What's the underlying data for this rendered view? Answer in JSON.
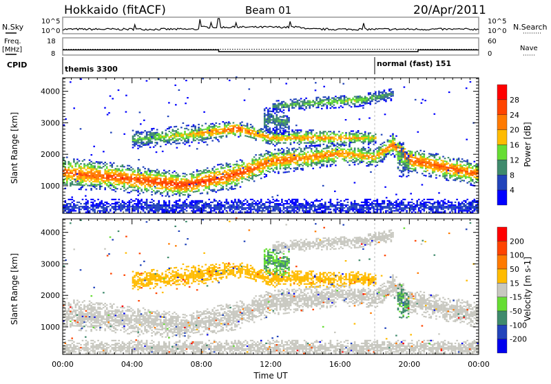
{
  "header": {
    "station": "Hokkaido (fitACF)",
    "beam": "Beam 01",
    "date": "20/Apr/2011"
  },
  "nsky": {
    "label": "N.Sky",
    "right_label": "N.Search",
    "ticks_left": [
      "10^5",
      "10^0"
    ],
    "ticks_right": [
      "10^5",
      "10^0"
    ]
  },
  "freq": {
    "label1": "Freq.",
    "label2": "[MHz]",
    "right_label": "Nave",
    "ticks_left": [
      "18",
      "8"
    ],
    "ticks_right": [
      "60",
      "0"
    ],
    "freq_mhz": [
      [
        0,
        11
      ],
      [
        9,
        10
      ],
      [
        20.5,
        11
      ],
      [
        24,
        11
      ]
    ],
    "nave": 20
  },
  "cpid": {
    "label": "CPID",
    "items": [
      {
        "name": "themis 3300",
        "start_h": 0
      },
      {
        "name": "normal (fast) 151",
        "start_h": 18
      }
    ]
  },
  "chart_data": [
    {
      "type": "heatmap",
      "title": "Power",
      "ylabel": "Slant Range [km]",
      "xlabel": "Time UT",
      "xlim": [
        0,
        24
      ],
      "ylim": [
        125,
        4430
      ],
      "x_ticks": [
        "00:00",
        "04:00",
        "08:00",
        "12:00",
        "16:00",
        "20:00",
        "00:00"
      ],
      "y_ticks": [
        "1000",
        "2000",
        "3000",
        "4000"
      ],
      "colorbar": {
        "label": "Power [dB]",
        "ticks": [
          "4",
          "8",
          "12",
          "16",
          "20",
          "24",
          "28"
        ],
        "colors": [
          "#0000ff",
          "#2244bb",
          "#3f8a6c",
          "#66dd33",
          "#ffbb00",
          "#ff7a00",
          "#ff4400",
          "#ff0000"
        ]
      }
    },
    {
      "type": "heatmap",
      "title": "Velocity",
      "ylabel": "Slant Range [km]",
      "xlabel": "Time UT",
      "xlim": [
        0,
        24
      ],
      "ylim": [
        125,
        4430
      ],
      "x_ticks": [
        "00:00",
        "04:00",
        "08:00",
        "12:00",
        "16:00",
        "20:00",
        "00:00"
      ],
      "y_ticks": [
        "1000",
        "2000",
        "3000",
        "4000"
      ],
      "colorbar": {
        "label": "Velocity [m s-1]",
        "ticks": [
          "200",
          "100",
          "50",
          "15",
          "-15",
          "-50",
          "-100",
          "-200"
        ],
        "colors": [
          "#0000ee",
          "#2244bb",
          "#3f8a6c",
          "#66dd33",
          "#c8c8c0",
          "#ffbb00",
          "#ff7a00",
          "#ff4400",
          "#ff0000"
        ]
      }
    }
  ],
  "echo_bands": [
    {
      "points": [
        [
          0,
          1400,
          500,
          24
        ],
        [
          3,
          1250,
          450,
          26
        ],
        [
          7,
          1000,
          400,
          28
        ],
        [
          10,
          1350,
          450,
          26
        ],
        [
          12,
          1750,
          400,
          24
        ],
        [
          16,
          2000,
          350,
          22
        ],
        [
          18,
          1900,
          300,
          20
        ],
        [
          19,
          2300,
          350,
          24
        ],
        [
          20,
          1800,
          400,
          26
        ],
        [
          24,
          1350,
          400,
          24
        ]
      ],
      "vel": 0
    },
    {
      "points": [
        [
          4,
          2450,
          300,
          12
        ],
        [
          8,
          2650,
          300,
          20
        ],
        [
          10,
          2800,
          250,
          26
        ],
        [
          12,
          2500,
          250,
          20
        ],
        [
          16,
          2500,
          250,
          22
        ],
        [
          18,
          2500,
          200,
          18
        ]
      ],
      "vel": -30
    },
    {
      "points": [
        [
          12,
          3500,
          200,
          12
        ],
        [
          14,
          3600,
          200,
          14
        ],
        [
          17,
          3700,
          200,
          16
        ],
        [
          19,
          3900,
          200,
          10
        ]
      ],
      "vel": -5
    },
    {
      "points": [
        [
          11.5,
          3100,
          400,
          12
        ],
        [
          13,
          3000,
          400,
          10
        ]
      ],
      "vel": 30
    },
    {
      "points": [
        [
          19.3,
          1900,
          600,
          14
        ],
        [
          20,
          1600,
          400,
          12
        ]
      ],
      "vel": 35
    },
    {
      "points": [
        [
          0,
          300,
          250,
          6
        ],
        [
          24,
          300,
          250,
          6
        ]
      ],
      "vel": 0
    }
  ],
  "xaxis_title": "Time UT"
}
